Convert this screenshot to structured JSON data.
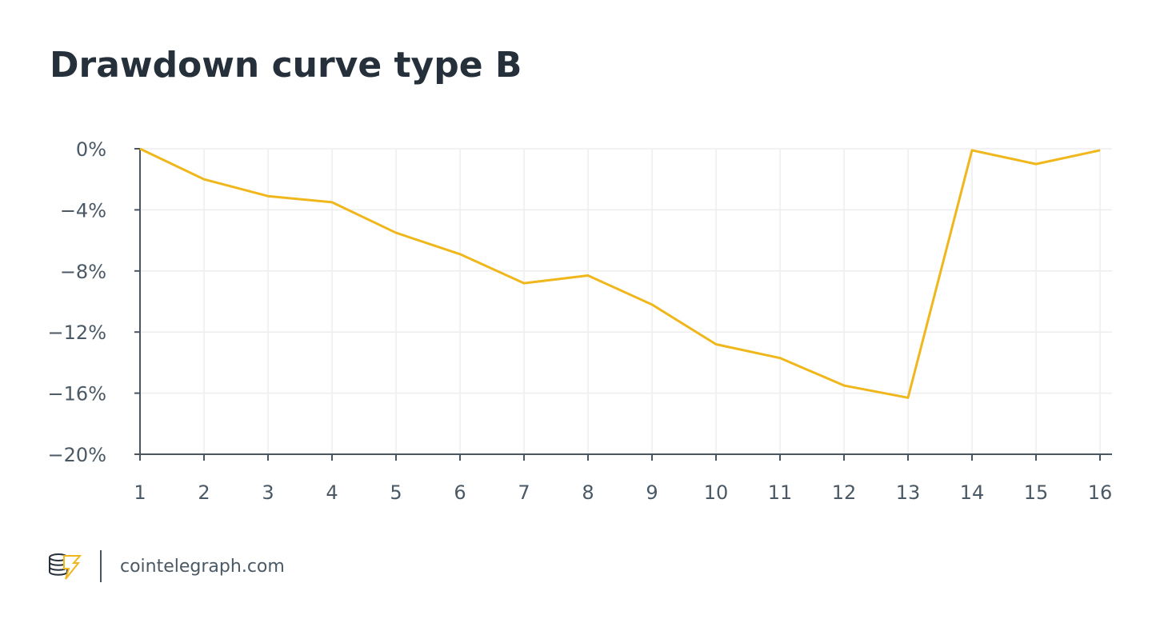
{
  "chart_data": {
    "type": "line",
    "title": "Drawdown curve type B",
    "x": [
      1,
      2,
      3,
      4,
      5,
      6,
      7,
      8,
      9,
      10,
      11,
      12,
      13,
      14,
      15,
      16
    ],
    "values": [
      0,
      -2.0,
      -3.1,
      -3.5,
      -5.5,
      -6.9,
      -8.8,
      -8.3,
      -10.2,
      -12.8,
      -13.7,
      -15.5,
      -16.3,
      -0.1,
      -1.0,
      -0.1
    ],
    "color": "#f0b71c",
    "xlim": [
      1,
      16
    ],
    "xticks": [
      1,
      2,
      3,
      4,
      5,
      6,
      7,
      8,
      9,
      10,
      11,
      12,
      13,
      14,
      15,
      16
    ],
    "ylim": [
      -20,
      0
    ],
    "yticks": [
      {
        "value": 0,
        "label": "0%"
      },
      {
        "value": -4,
        "label": "−4%"
      },
      {
        "value": -8,
        "label": "−8%"
      },
      {
        "value": -12,
        "label": "−12%"
      },
      {
        "value": -16,
        "label": "−16%"
      },
      {
        "value": -20,
        "label": "−20%"
      }
    ],
    "grid": true
  },
  "footer": "cointelegraph.com"
}
